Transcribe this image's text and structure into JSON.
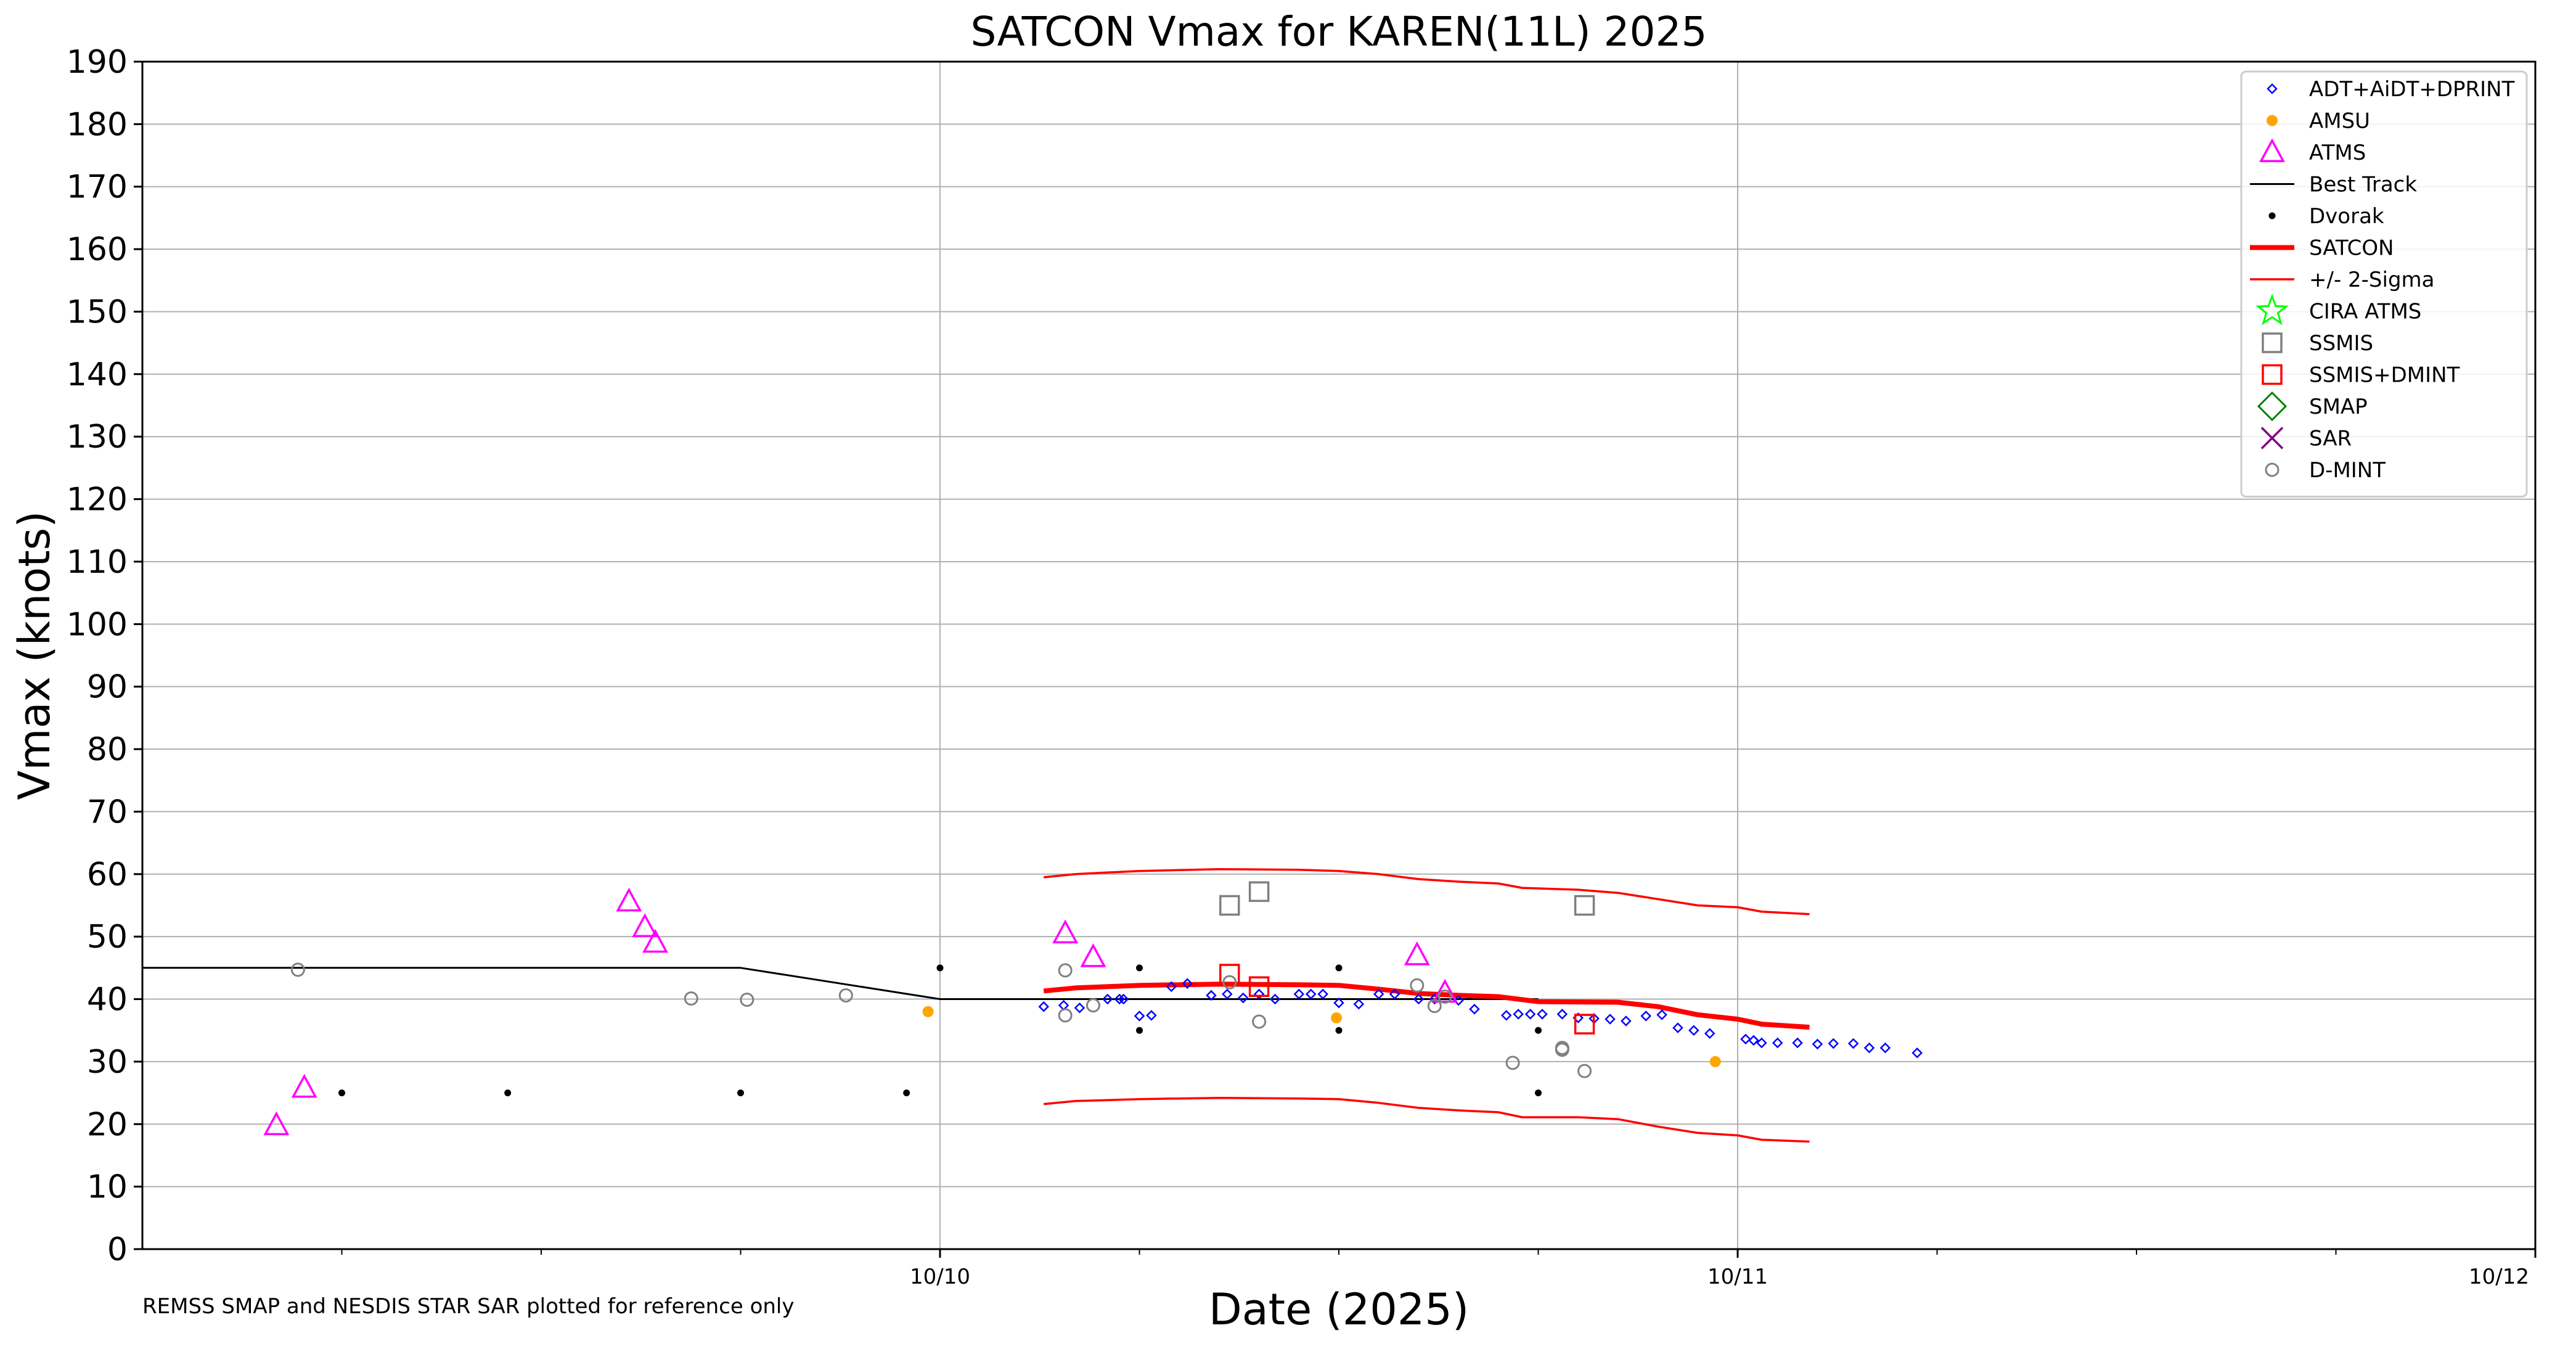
{
  "chart_data": {
    "type": "scatter",
    "title": "SATCON Vmax for KAREN(11L) 2025",
    "xlabel": "Date (2025)",
    "ylabel": "Vmax (knots)",
    "footnote": "REMSS SMAP and NESDIS STAR SAR plotted for reference only",
    "x_unit": "day of October 2025 (UTC)",
    "xlim": [
      9.0,
      12.0
    ],
    "ylim": [
      0,
      190
    ],
    "yticks": [
      0,
      10,
      20,
      30,
      40,
      50,
      60,
      70,
      80,
      90,
      100,
      110,
      120,
      130,
      140,
      150,
      160,
      170,
      180,
      190
    ],
    "xticks_major": [
      {
        "x": 10.0,
        "label": "10/10"
      },
      {
        "x": 11.0,
        "label": "10/11"
      },
      {
        "x": 12.0,
        "label": "10/12"
      }
    ],
    "xticks_minor": [
      9.25,
      9.5,
      9.75,
      10.25,
      10.5,
      10.75,
      11.25,
      11.5,
      11.75
    ],
    "grid": true,
    "legend_position": "top-right",
    "legend": [
      {
        "label": "ADT+AiDT+DPRINT",
        "marker": "diamond-small",
        "color": "#0000ff"
      },
      {
        "label": "AMSU",
        "marker": "dot",
        "color": "#ffa500"
      },
      {
        "label": "ATMS",
        "marker": "triangle",
        "color": "#ff00ff"
      },
      {
        "label": "Best Track",
        "marker": "line",
        "color": "#000000"
      },
      {
        "label": "Dvorak",
        "marker": "dot-small",
        "color": "#000000"
      },
      {
        "label": "SATCON",
        "marker": "line-thick",
        "color": "#ff0000"
      },
      {
        "label": "+/- 2-Sigma",
        "marker": "line-thin",
        "color": "#ff0000"
      },
      {
        "label": "CIRA ATMS",
        "marker": "star",
        "color": "#00ff00"
      },
      {
        "label": "SSMIS",
        "marker": "square",
        "color": "#808080"
      },
      {
        "label": "SSMIS+DMINT",
        "marker": "square",
        "color": "#ff0000"
      },
      {
        "label": "SMAP",
        "marker": "diamond-large",
        "color": "#008000"
      },
      {
        "label": "SAR",
        "marker": "x",
        "color": "#800080"
      },
      {
        "label": "D-MINT",
        "marker": "circle",
        "color": "#808080"
      }
    ],
    "series": [
      {
        "name": "Best Track",
        "kind": "line",
        "color": "#000000",
        "points": [
          [
            9.0,
            45
          ],
          [
            9.75,
            45
          ],
          [
            10.0,
            40
          ],
          [
            10.75,
            40
          ]
        ]
      },
      {
        "name": "SATCON",
        "kind": "line-thick",
        "color": "#ff0000",
        "points": [
          [
            10.13,
            41.3
          ],
          [
            10.17,
            41.8
          ],
          [
            10.25,
            42.2
          ],
          [
            10.35,
            42.4
          ],
          [
            10.45,
            42.3
          ],
          [
            10.5,
            42.2
          ],
          [
            10.55,
            41.6
          ],
          [
            10.6,
            40.9
          ],
          [
            10.65,
            40.6
          ],
          [
            10.7,
            40.4
          ],
          [
            10.75,
            39.6
          ],
          [
            10.85,
            39.5
          ],
          [
            10.9,
            38.8
          ],
          [
            10.95,
            37.5
          ],
          [
            11.0,
            36.8
          ],
          [
            11.03,
            36.0
          ],
          [
            11.09,
            35.5
          ]
        ]
      },
      {
        "name": "+/- 2-Sigma",
        "kind": "line-thin",
        "color": "#ff0000",
        "points": [
          [
            10.13,
            59.5
          ],
          [
            10.17,
            60.0
          ],
          [
            10.2,
            60.2
          ],
          [
            10.25,
            60.5
          ],
          [
            10.35,
            60.8
          ],
          [
            10.45,
            60.7
          ],
          [
            10.5,
            60.5
          ],
          [
            10.55,
            60.0
          ],
          [
            10.6,
            59.2
          ],
          [
            10.65,
            58.8
          ],
          [
            10.7,
            58.5
          ],
          [
            10.73,
            57.8
          ],
          [
            10.8,
            57.5
          ],
          [
            10.85,
            57.0
          ],
          [
            10.9,
            56.0
          ],
          [
            10.95,
            55.0
          ],
          [
            11.0,
            54.7
          ],
          [
            11.03,
            54.0
          ],
          [
            11.09,
            53.6
          ]
        ]
      },
      {
        "name": "+/- 2-Sigma lower",
        "kind": "line-thin",
        "color": "#ff0000",
        "points": [
          [
            10.13,
            23.2
          ],
          [
            10.17,
            23.7
          ],
          [
            10.2,
            23.8
          ],
          [
            10.25,
            24.0
          ],
          [
            10.35,
            24.2
          ],
          [
            10.45,
            24.1
          ],
          [
            10.5,
            24.0
          ],
          [
            10.55,
            23.4
          ],
          [
            10.6,
            22.6
          ],
          [
            10.65,
            22.2
          ],
          [
            10.7,
            21.9
          ],
          [
            10.73,
            21.1
          ],
          [
            10.8,
            21.1
          ],
          [
            10.85,
            20.8
          ],
          [
            10.9,
            19.6
          ],
          [
            10.95,
            18.6
          ],
          [
            11.0,
            18.2
          ],
          [
            11.03,
            17.5
          ],
          [
            11.09,
            17.2
          ]
        ]
      },
      {
        "name": "ADT+AiDT+DPRINT",
        "kind": "diamond-small",
        "color": "#0000ff",
        "points": [
          [
            10.13,
            38.8
          ],
          [
            10.155,
            39.0
          ],
          [
            10.175,
            38.6
          ],
          [
            10.21,
            40.0
          ],
          [
            10.225,
            40.0
          ],
          [
            10.23,
            40.0
          ],
          [
            10.25,
            37.3
          ],
          [
            10.265,
            37.4
          ],
          [
            10.29,
            42.0
          ],
          [
            10.31,
            42.5
          ],
          [
            10.34,
            40.6
          ],
          [
            10.36,
            40.8
          ],
          [
            10.38,
            40.2
          ],
          [
            10.4,
            40.8
          ],
          [
            10.42,
            40.0
          ],
          [
            10.45,
            40.8
          ],
          [
            10.465,
            40.8
          ],
          [
            10.48,
            40.8
          ],
          [
            10.5,
            39.4
          ],
          [
            10.525,
            39.2
          ],
          [
            10.55,
            40.8
          ],
          [
            10.57,
            40.8
          ],
          [
            10.6,
            40.0
          ],
          [
            10.62,
            40.0
          ],
          [
            10.65,
            39.8
          ],
          [
            10.67,
            38.4
          ],
          [
            10.71,
            37.4
          ],
          [
            10.725,
            37.6
          ],
          [
            10.74,
            37.6
          ],
          [
            10.755,
            37.6
          ],
          [
            10.78,
            37.6
          ],
          [
            10.8,
            37.0
          ],
          [
            10.82,
            36.9
          ],
          [
            10.84,
            36.8
          ],
          [
            10.86,
            36.5
          ],
          [
            10.885,
            37.3
          ],
          [
            10.905,
            37.5
          ],
          [
            10.925,
            35.4
          ],
          [
            10.945,
            35.0
          ],
          [
            10.965,
            34.5
          ],
          [
            11.01,
            33.6
          ],
          [
            11.02,
            33.4
          ],
          [
            11.03,
            33.0
          ],
          [
            11.05,
            33.0
          ],
          [
            11.075,
            33.0
          ],
          [
            11.1,
            32.8
          ],
          [
            11.12,
            32.9
          ],
          [
            11.145,
            32.9
          ],
          [
            11.165,
            32.2
          ],
          [
            11.185,
            32.2
          ],
          [
            11.225,
            31.4
          ]
        ]
      },
      {
        "name": "AMSU",
        "kind": "dot",
        "color": "#ffa500",
        "points": [
          [
            9.985,
            38.0
          ],
          [
            10.497,
            37.0
          ],
          [
            10.972,
            30.0
          ]
        ]
      },
      {
        "name": "ATMS",
        "kind": "triangle",
        "color": "#ff00ff",
        "points": [
          [
            9.168,
            19.8
          ],
          [
            9.203,
            25.8
          ],
          [
            9.61,
            55.6
          ],
          [
            9.63,
            51.5
          ],
          [
            9.643,
            49.0
          ],
          [
            10.157,
            50.5
          ],
          [
            10.192,
            46.7
          ],
          [
            10.598,
            47.0
          ],
          [
            10.633,
            41.0
          ]
        ]
      },
      {
        "name": "Dvorak",
        "kind": "dot-small",
        "color": "#000000",
        "points": [
          [
            9.25,
            25
          ],
          [
            9.458,
            25
          ],
          [
            9.75,
            25
          ],
          [
            9.958,
            25
          ],
          [
            10.0,
            45
          ],
          [
            10.25,
            45
          ],
          [
            10.25,
            35
          ],
          [
            10.5,
            45
          ],
          [
            10.5,
            35
          ],
          [
            10.75,
            35
          ],
          [
            10.75,
            25
          ]
        ]
      },
      {
        "name": "SSMIS",
        "kind": "square",
        "color": "#808080",
        "points": [
          [
            10.363,
            55.0
          ],
          [
            10.4,
            57.2
          ],
          [
            10.808,
            55.0
          ]
        ]
      },
      {
        "name": "SSMIS+DMINT",
        "kind": "square",
        "color": "#ff0000",
        "points": [
          [
            10.363,
            44.0
          ],
          [
            10.4,
            42.0
          ],
          [
            10.808,
            36.0
          ]
        ]
      },
      {
        "name": "D-MINT",
        "kind": "circle",
        "color": "#808080",
        "points": [
          [
            9.195,
            44.7
          ],
          [
            9.688,
            40.1
          ],
          [
            9.758,
            39.9
          ],
          [
            9.882,
            40.6
          ],
          [
            10.157,
            44.6
          ],
          [
            10.157,
            37.4
          ],
          [
            10.192,
            39.0
          ],
          [
            10.363,
            42.7
          ],
          [
            10.4,
            36.4
          ],
          [
            10.598,
            42.2
          ],
          [
            10.62,
            38.9
          ],
          [
            10.633,
            40.4
          ],
          [
            10.718,
            29.8
          ],
          [
            10.78,
            31.9
          ],
          [
            10.78,
            32.2
          ],
          [
            10.808,
            28.5
          ]
        ]
      }
    ]
  }
}
